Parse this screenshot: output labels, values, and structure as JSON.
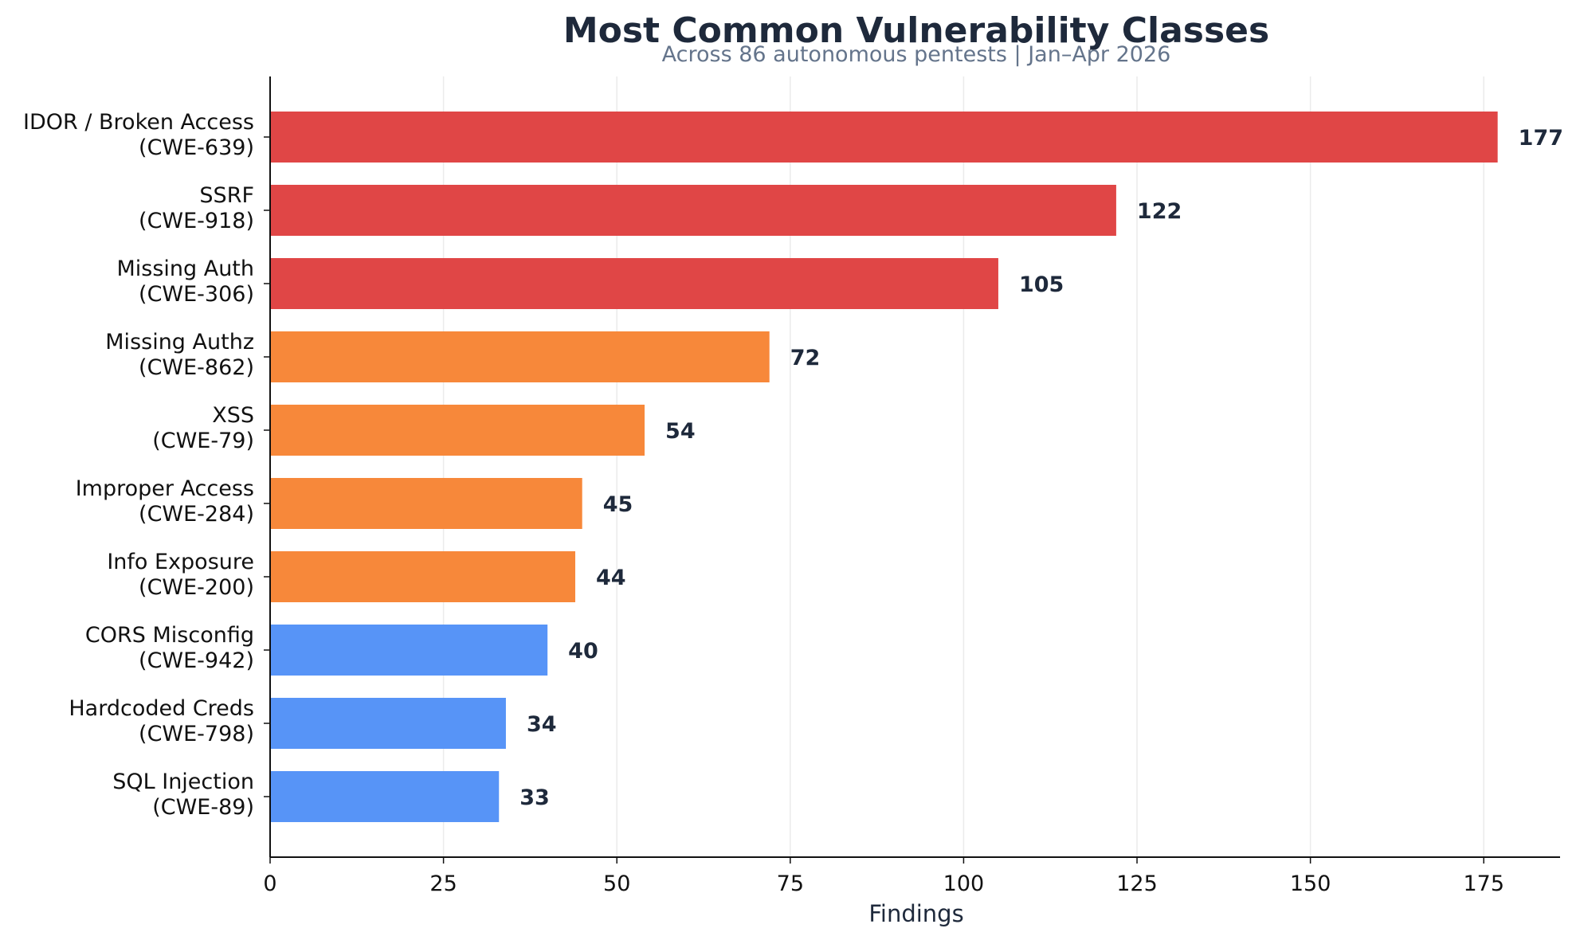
{
  "chart_data": {
    "type": "bar",
    "orientation": "horizontal",
    "title": "Most Common Vulnerability Classes",
    "subtitle": "Across 86 autonomous pentests  |  Jan–Apr 2026",
    "xlabel": "Findings",
    "ylabel": "",
    "xlim": [
      0,
      186
    ],
    "xticks": [
      0,
      25,
      50,
      75,
      100,
      125,
      150,
      175
    ],
    "grid": "vertical",
    "categories": [
      [
        "IDOR / Broken Access",
        "(CWE-639)"
      ],
      [
        "SSRF",
        "(CWE-918)"
      ],
      [
        "Missing Auth",
        "(CWE-306)"
      ],
      [
        "Missing Authz",
        "(CWE-862)"
      ],
      [
        "XSS",
        "(CWE-79)"
      ],
      [
        "Improper Access",
        "(CWE-284)"
      ],
      [
        "Info Exposure",
        "(CWE-200)"
      ],
      [
        "CORS Misconfig",
        "(CWE-942)"
      ],
      [
        "Hardcoded Creds",
        "(CWE-798)"
      ],
      [
        "SQL Injection",
        "(CWE-89)"
      ]
    ],
    "values": [
      177,
      122,
      105,
      72,
      54,
      45,
      44,
      40,
      34,
      33
    ],
    "bar_colors": [
      "#e04646",
      "#e04646",
      "#e04646",
      "#f7883a",
      "#f7883a",
      "#f7883a",
      "#f7883a",
      "#5794f7",
      "#5794f7",
      "#5794f7"
    ]
  },
  "colors": {
    "title": "#1e293b",
    "subtitle": "#64748b",
    "grid": "#ebebeb",
    "axis": "#111111",
    "value_label": "#1e293b"
  }
}
